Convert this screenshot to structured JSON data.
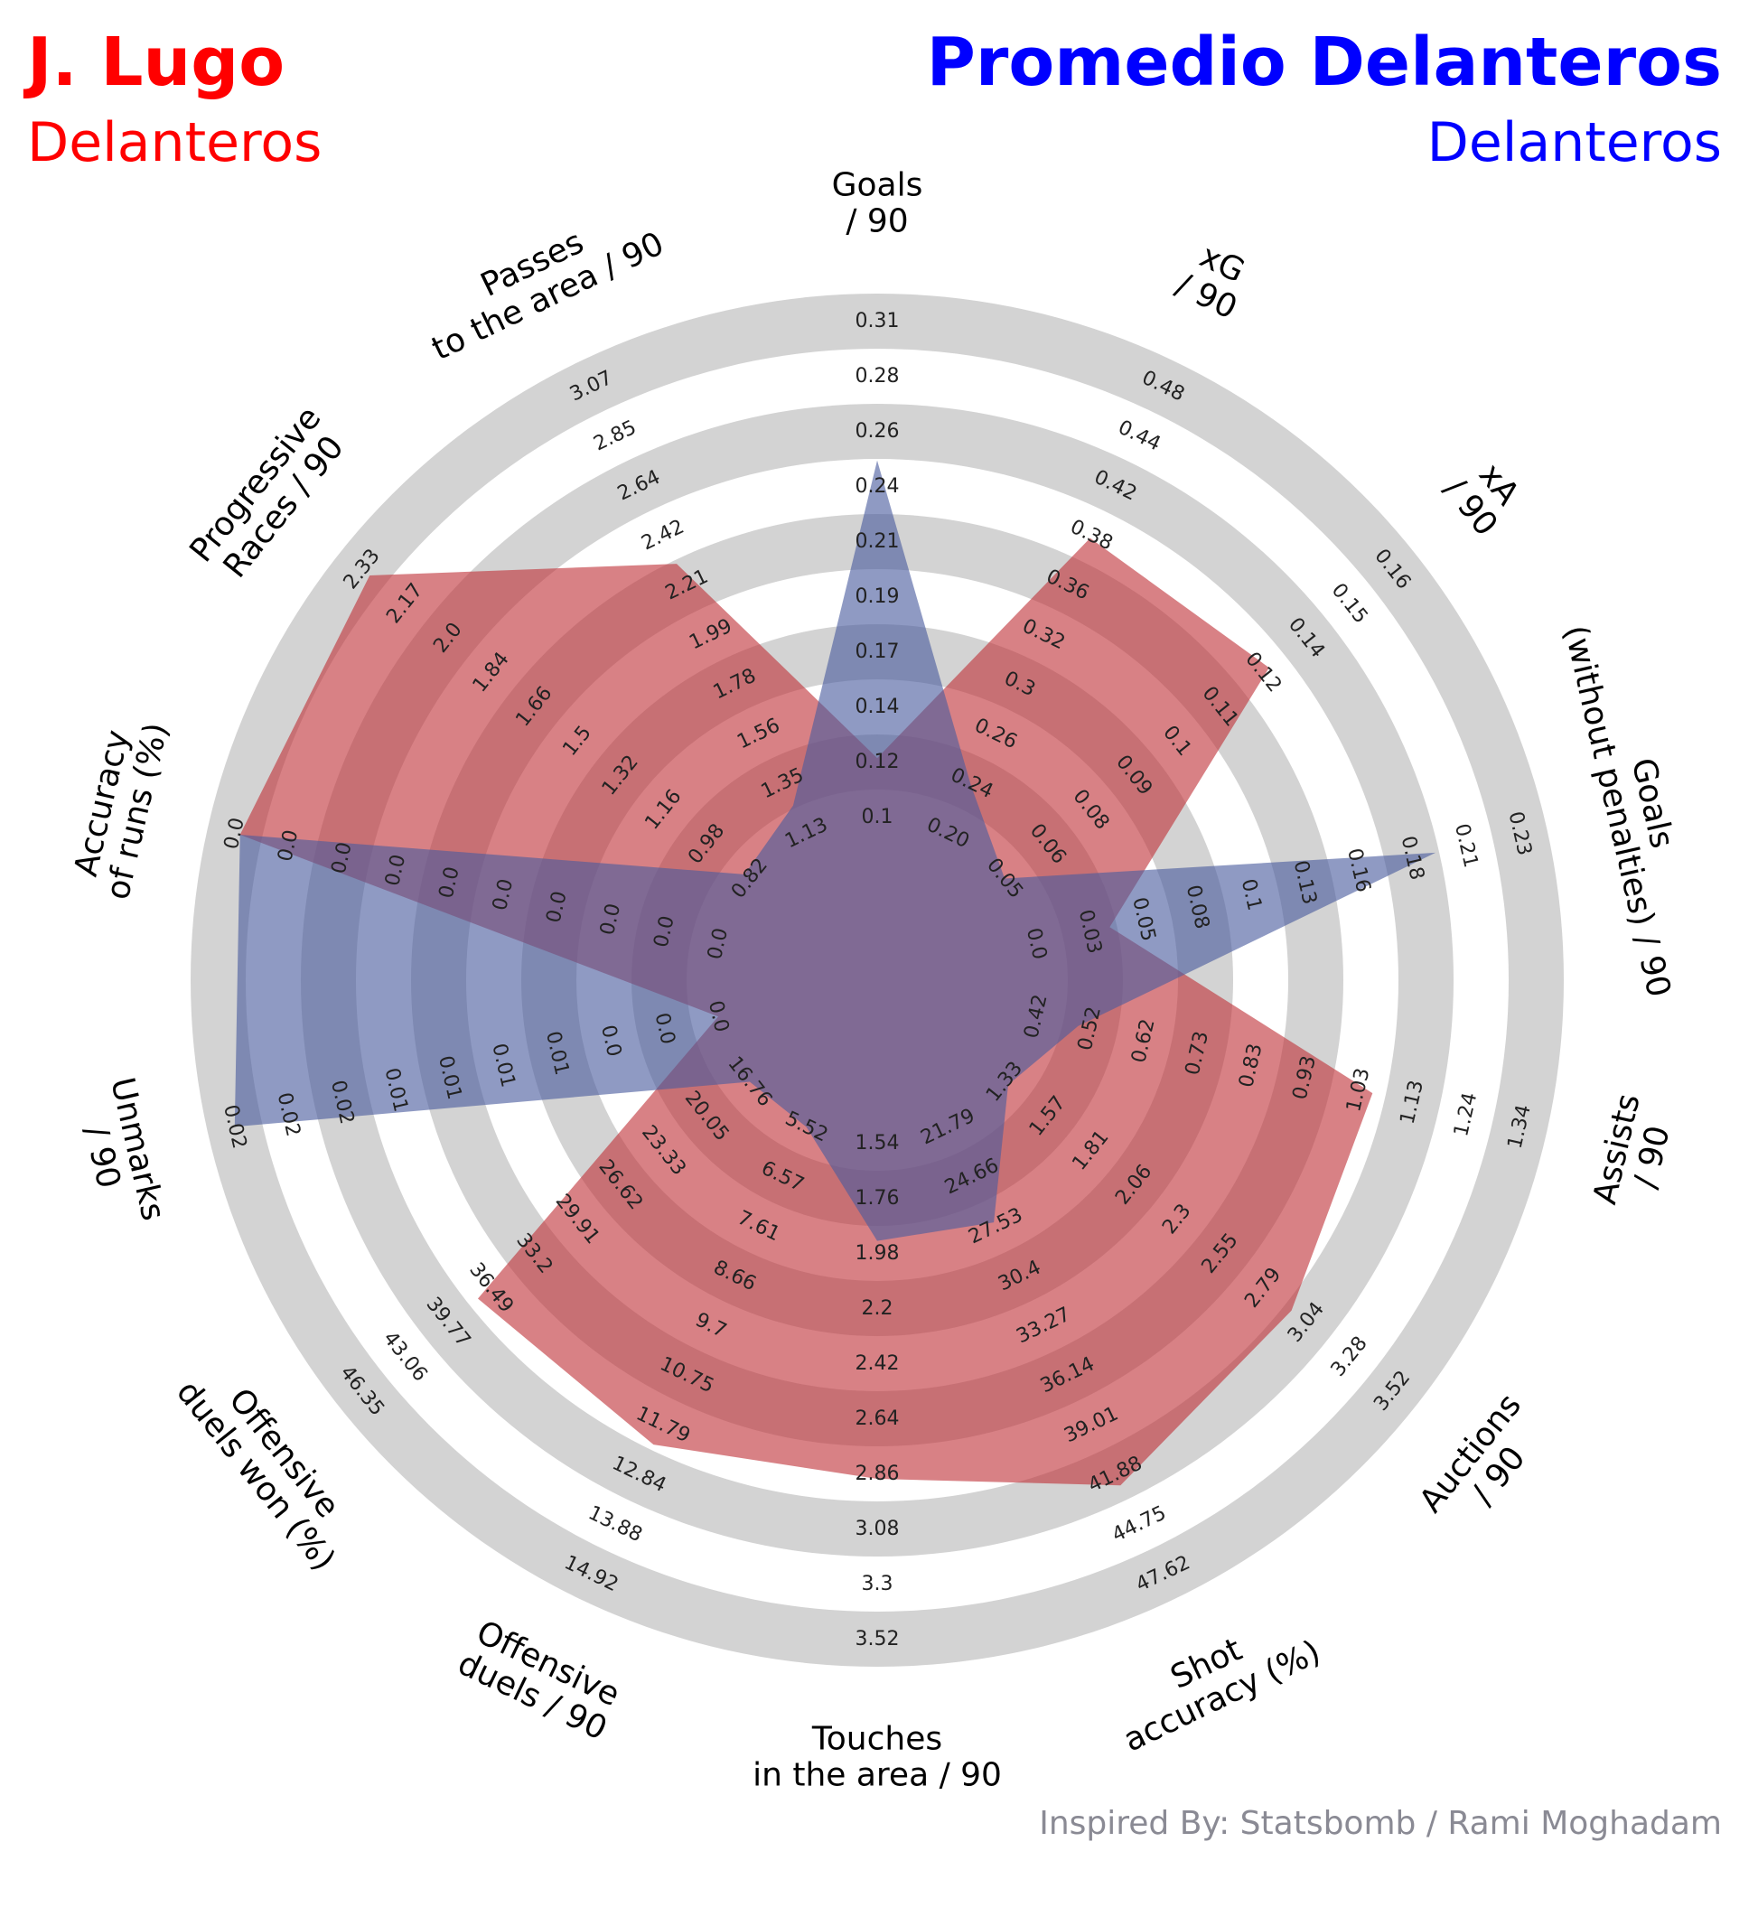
{
  "header": {
    "player_name": "J. Lugo",
    "player_group": "Delanteros",
    "compare_name": "Promedio Delanteros",
    "compare_group": "Delanteros"
  },
  "footer": {
    "credit": "Inspired By: Statsbomb / Rami Moghadam"
  },
  "colors": {
    "player": "#c0343a",
    "compare": "#4a5c9e",
    "rings": "#d3d3d3",
    "player_title": "#ff0000",
    "compare_title": "#0000ff"
  },
  "chart_data": {
    "type": "radar",
    "params": [
      {
        "label": [
          "Goals",
          "/ 90"
        ],
        "ticks": [
          "0.1",
          "0.12",
          "0.14",
          "0.17",
          "0.19",
          "0.21",
          "0.24",
          "0.26",
          "0.28",
          "0.31"
        ]
      },
      {
        "label": [
          "xG",
          "/ 90"
        ],
        "ticks": [
          "0.20",
          "0.24",
          "0.26",
          "0.3",
          "0.32",
          "0.36",
          "0.38",
          "0.42",
          "0.44",
          "0.48"
        ]
      },
      {
        "label": [
          "xA",
          "/ 90"
        ],
        "ticks": [
          "0.05",
          "0.06",
          "0.08",
          "0.09",
          "0.1",
          "0.11",
          "0.12",
          "0.14",
          "0.15",
          "0.16"
        ]
      },
      {
        "label": [
          "Goals",
          "(without penalties) / 90"
        ],
        "ticks": [
          "0.0",
          "0.03",
          "0.05",
          "0.08",
          "0.1",
          "0.13",
          "0.16",
          "0.18",
          "0.21",
          "0.23"
        ]
      },
      {
        "label": [
          "Assists",
          "/ 90"
        ],
        "ticks": [
          "0.42",
          "0.52",
          "0.62",
          "0.73",
          "0.83",
          "0.93",
          "1.03",
          "1.13",
          "1.24",
          "1.34"
        ]
      },
      {
        "label": [
          "Auctions",
          "/ 90"
        ],
        "ticks": [
          "1.33",
          "1.57",
          "1.81",
          "2.06",
          "2.3",
          "2.55",
          "2.79",
          "3.04",
          "3.28",
          "3.52"
        ]
      },
      {
        "label": [
          "Shot",
          "accuracy (%)"
        ],
        "ticks": [
          "21.79",
          "24.66",
          "27.53",
          "30.4",
          "33.27",
          "36.14",
          "39.01",
          "41.88",
          "44.75",
          "47.62"
        ]
      },
      {
        "label": [
          "Touches",
          "in the area / 90"
        ],
        "ticks": [
          "1.54",
          "1.76",
          "1.98",
          "2.2",
          "2.42",
          "2.64",
          "2.86",
          "3.08",
          "3.3",
          "3.52"
        ]
      },
      {
        "label": [
          "Offensive",
          "duels / 90"
        ],
        "ticks": [
          "5.52",
          "6.57",
          "7.61",
          "8.66",
          "9.7",
          "10.75",
          "11.79",
          "12.84",
          "13.88",
          "14.92"
        ]
      },
      {
        "label": [
          "Offensive",
          "duels won (%)"
        ],
        "ticks": [
          "16.76",
          "20.05",
          "23.33",
          "26.62",
          "29.91",
          "33.2",
          "36.49",
          "39.77",
          "43.06",
          "46.35"
        ]
      },
      {
        "label": [
          "Unmarks",
          "/ 90"
        ],
        "ticks": [
          "0.0",
          "0.0",
          "0.0",
          "0.01",
          "0.01",
          "0.01",
          "0.01",
          "0.02",
          "0.02",
          "0.02"
        ]
      },
      {
        "label": [
          "Accuracy",
          "of runs (%)"
        ],
        "ticks": [
          "0.0",
          "0.0",
          "0.0",
          "0.0",
          "0.0",
          "0.0",
          "0.0",
          "0.0",
          "0.0",
          "0.0"
        ]
      },
      {
        "label": [
          "Progressive",
          "Races / 90"
        ],
        "ticks": [
          "0.82",
          "0.98",
          "1.16",
          "1.32",
          "1.5",
          "1.66",
          "1.84",
          "2.0",
          "2.17",
          "2.33"
        ]
      },
      {
        "label": [
          "Passes",
          "to the area / 90"
        ],
        "ticks": [
          "1.13",
          "1.35",
          "1.56",
          "1.78",
          "1.99",
          "2.21",
          "2.42",
          "2.64",
          "2.85",
          "3.07"
        ]
      }
    ],
    "series": [
      {
        "name": "J. Lugo",
        "values": [
          0.125,
          0.385,
          0.125,
          0.035,
          1.06,
          2.95,
          42.5,
          2.88,
          12.2,
          37.5,
          0.0,
          0.0,
          2.3,
          2.3
        ]
      },
      {
        "name": "Promedio Delanteros",
        "values": [
          0.251,
          0.23,
          0.04,
          0.19,
          0.5,
          1.35,
          27.3,
          1.93,
          5.2,
          16.5,
          0.02,
          0.0,
          0.84,
          1.25
        ]
      }
    ],
    "grid": false,
    "legend": "none"
  }
}
